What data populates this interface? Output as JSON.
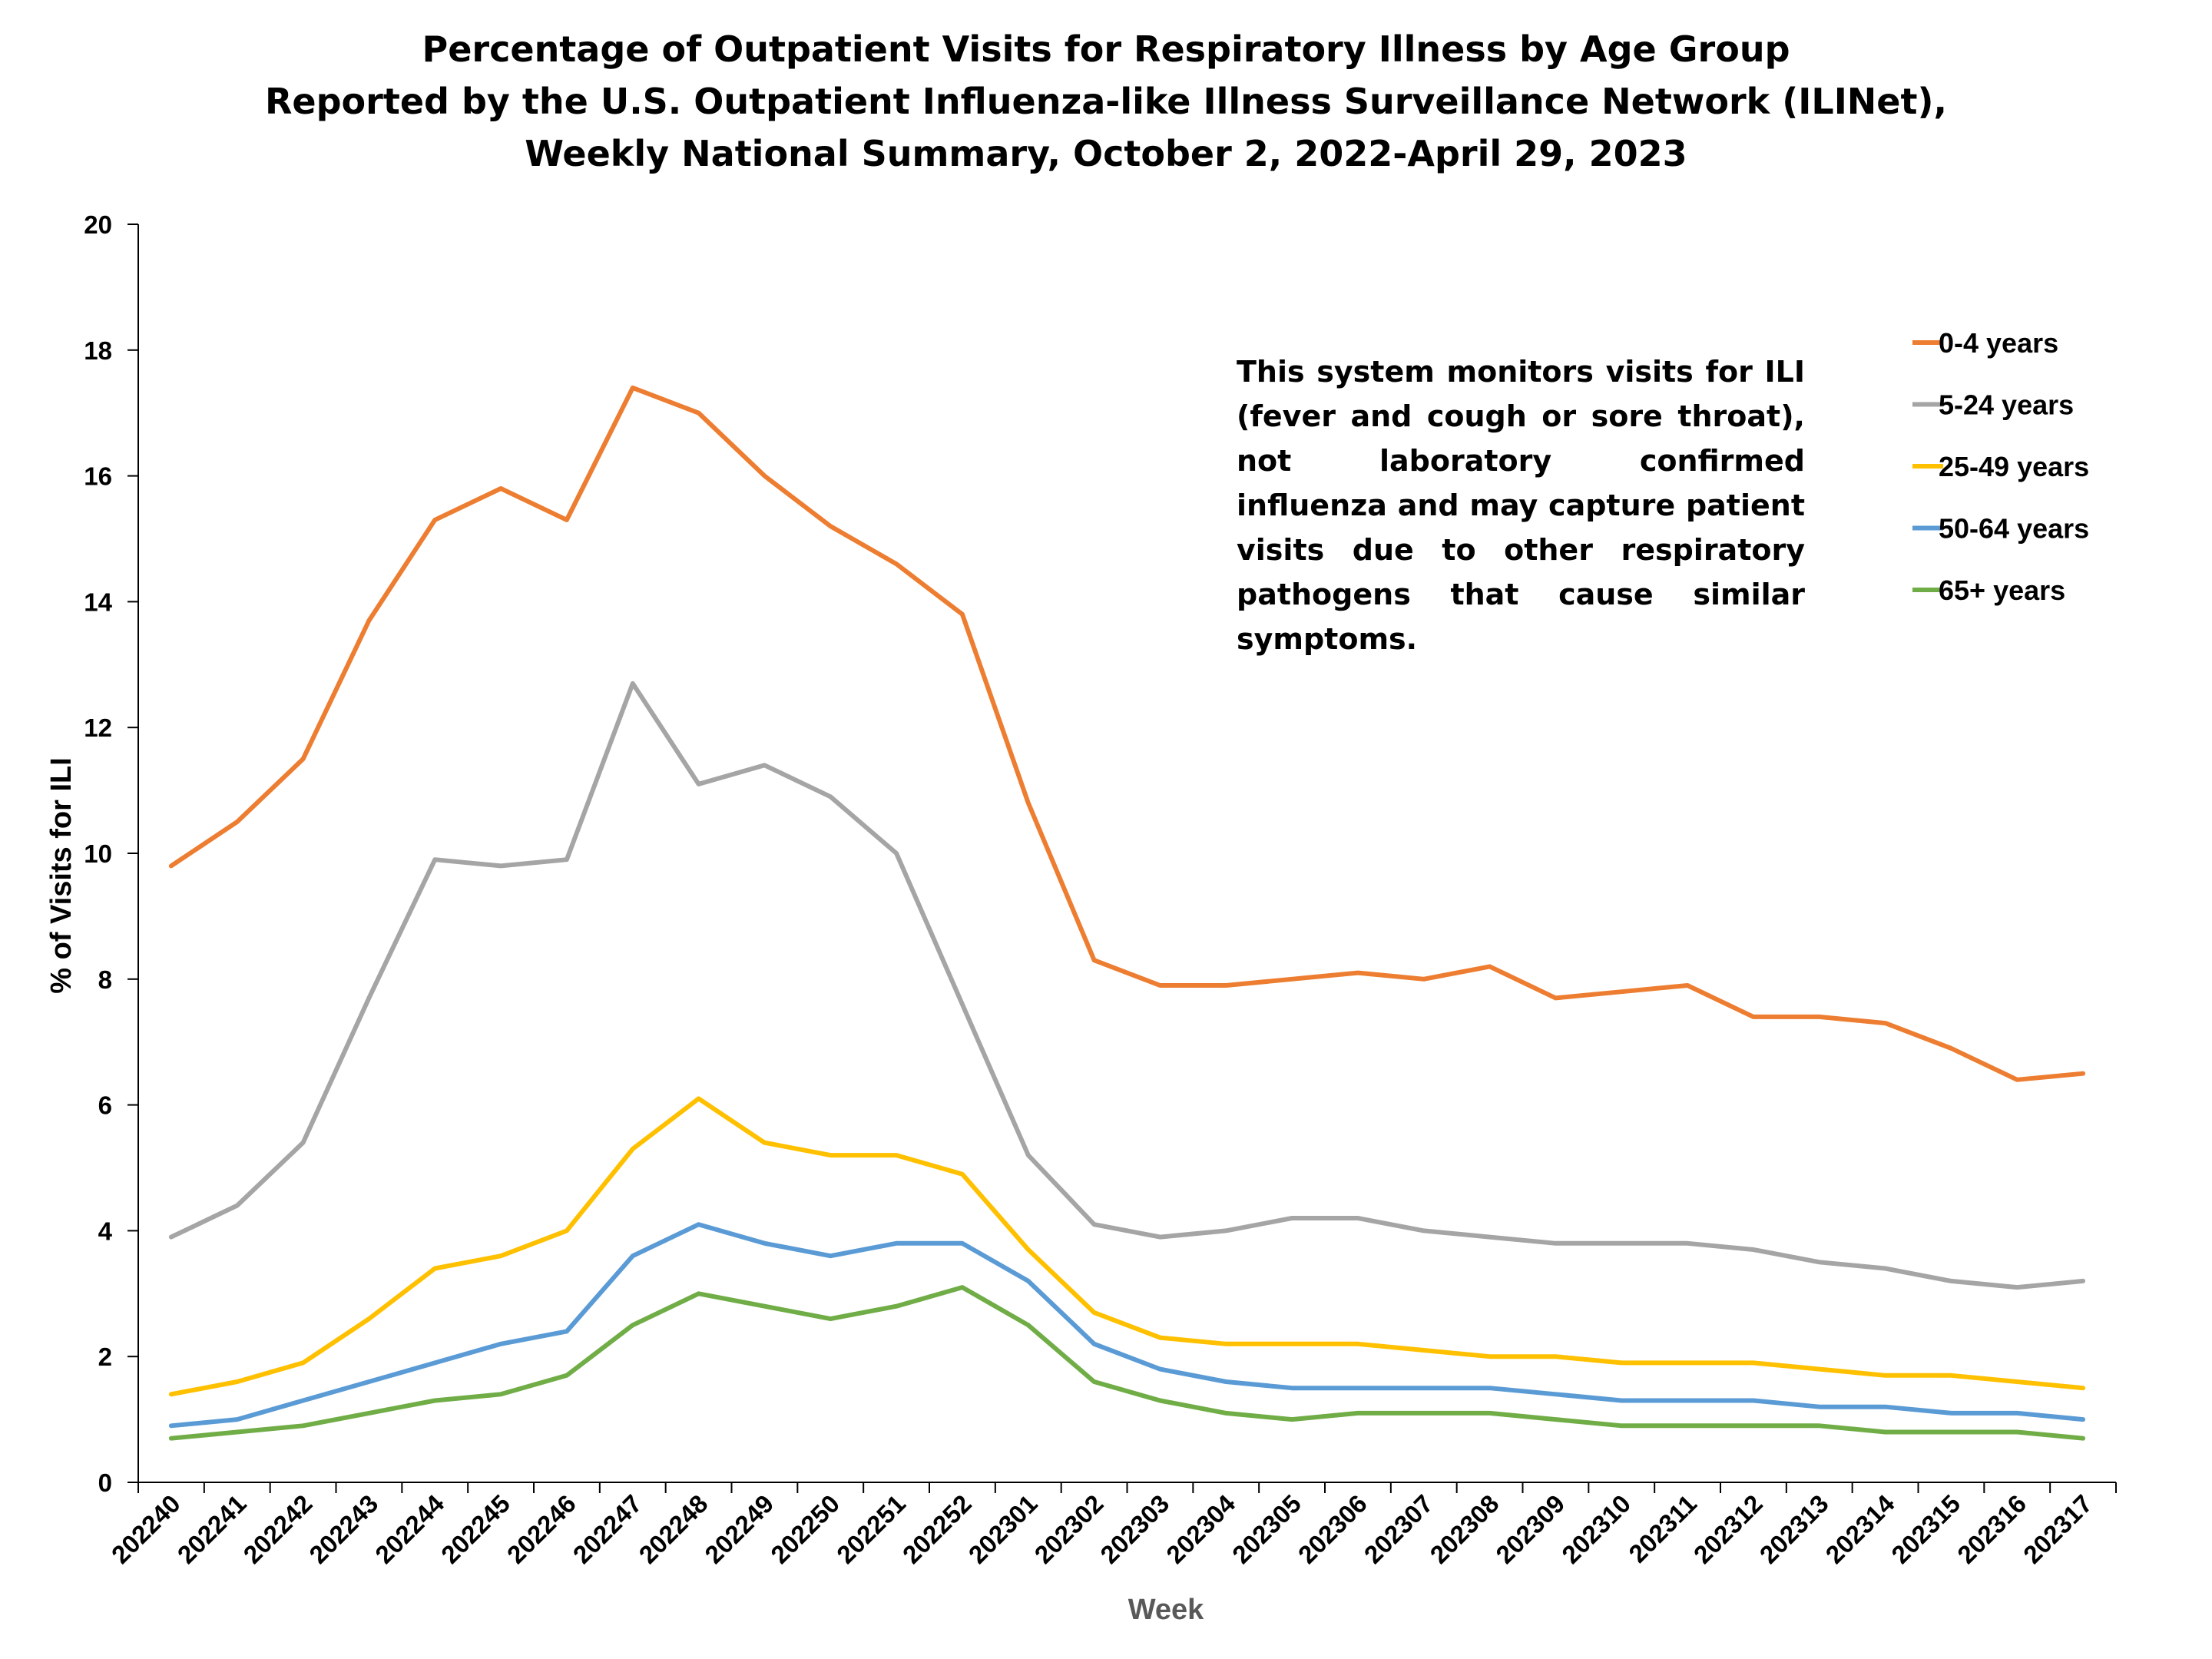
{
  "chart_data": {
    "type": "line",
    "title": [
      "Percentage of Outpatient Visits for Respiratory Illness by Age Group",
      "Reported by the U.S. Outpatient Influenza-like Illness Surveillance Network (ILINet),",
      "Weekly National Summary, October 2, 2022-April 29, 2023"
    ],
    "xlabel": "Week",
    "ylabel": "% of Visits for ILI",
    "ylim": [
      0,
      20
    ],
    "yticks": [
      0,
      2,
      4,
      6,
      8,
      10,
      12,
      14,
      16,
      18,
      20
    ],
    "categories": [
      "202240",
      "202241",
      "202242",
      "202243",
      "202244",
      "202245",
      "202246",
      "202247",
      "202248",
      "202249",
      "202250",
      "202251",
      "202252",
      "202301",
      "202302",
      "202303",
      "202304",
      "202305",
      "202306",
      "202307",
      "202308",
      "202309",
      "202310",
      "202311",
      "202312",
      "202313",
      "202314",
      "202315",
      "202316",
      "202317"
    ],
    "series": [
      {
        "name": "0-4 years",
        "color": "#ED7D31",
        "values": [
          9.8,
          10.5,
          11.5,
          13.7,
          15.3,
          15.8,
          15.3,
          17.4,
          17.0,
          16.0,
          15.2,
          14.6,
          13.8,
          10.8,
          8.3,
          7.9,
          7.9,
          8.0,
          8.1,
          8.0,
          8.2,
          7.7,
          7.8,
          7.9,
          7.4,
          7.4,
          7.3,
          6.9,
          6.4,
          6.5
        ]
      },
      {
        "name": "5-24 years",
        "color": "#A5A5A5",
        "values": [
          3.9,
          4.4,
          5.4,
          7.7,
          9.9,
          9.8,
          9.9,
          12.7,
          11.1,
          11.4,
          10.9,
          10.0,
          7.6,
          5.2,
          4.1,
          3.9,
          4.0,
          4.2,
          4.2,
          4.0,
          3.9,
          3.8,
          3.8,
          3.8,
          3.7,
          3.5,
          3.4,
          3.2,
          3.1,
          3.2
        ]
      },
      {
        "name": "25-49 years",
        "color": "#FFC000",
        "values": [
          1.4,
          1.6,
          1.9,
          2.6,
          3.4,
          3.6,
          4.0,
          5.3,
          6.1,
          5.4,
          5.2,
          5.2,
          4.9,
          3.7,
          2.7,
          2.3,
          2.2,
          2.2,
          2.2,
          2.1,
          2.0,
          2.0,
          1.9,
          1.9,
          1.9,
          1.8,
          1.7,
          1.7,
          1.6,
          1.5
        ]
      },
      {
        "name": "50-64 years",
        "color": "#5B9BD5",
        "values": [
          0.9,
          1.0,
          1.3,
          1.6,
          1.9,
          2.2,
          2.4,
          3.6,
          4.1,
          3.8,
          3.6,
          3.8,
          3.8,
          3.2,
          2.2,
          1.8,
          1.6,
          1.5,
          1.5,
          1.5,
          1.5,
          1.4,
          1.3,
          1.3,
          1.3,
          1.2,
          1.2,
          1.1,
          1.1,
          1.0
        ]
      },
      {
        "name": "65+ years",
        "color": "#70AD47",
        "values": [
          0.7,
          0.8,
          0.9,
          1.1,
          1.3,
          1.4,
          1.7,
          2.5,
          3.0,
          2.8,
          2.6,
          2.8,
          3.1,
          2.5,
          1.6,
          1.3,
          1.1,
          1.0,
          1.1,
          1.1,
          1.1,
          1.0,
          0.9,
          0.9,
          0.9,
          0.9,
          0.8,
          0.8,
          0.8,
          0.7
        ]
      }
    ],
    "annotation": "This system monitors visits for ILI (fever and cough or sore throat), not laboratory confirmed influenza and may capture patient visits due to other respiratory pathogens that cause similar symptoms.",
    "legend_position": "top-right"
  }
}
